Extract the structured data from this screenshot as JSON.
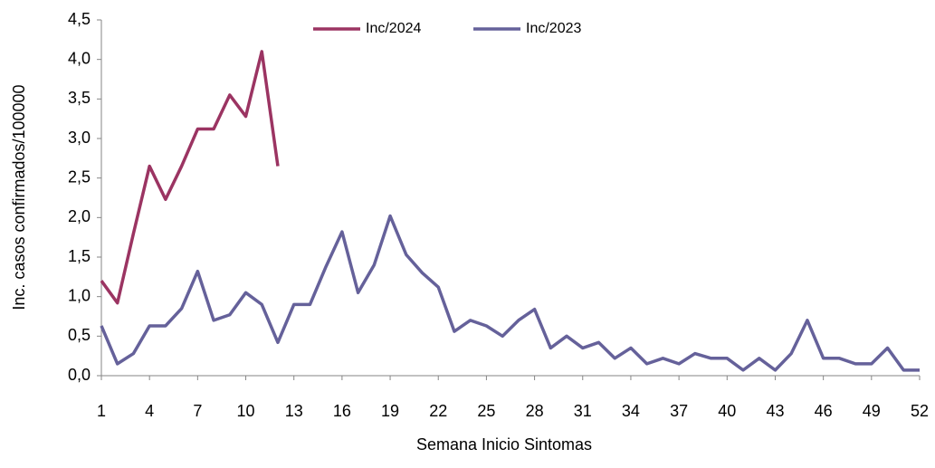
{
  "chart_data": {
    "type": "line",
    "x_label": "Semana Inicio Sintomas",
    "y_label": "Inc. casos confirmados/100000",
    "x": [
      1,
      2,
      3,
      4,
      5,
      6,
      7,
      8,
      9,
      10,
      11,
      12,
      13,
      14,
      15,
      16,
      17,
      18,
      19,
      20,
      21,
      22,
      23,
      24,
      25,
      26,
      27,
      28,
      29,
      30,
      31,
      32,
      33,
      34,
      35,
      36,
      37,
      38,
      39,
      40,
      41,
      42,
      43,
      44,
      45,
      46,
      47,
      48,
      49,
      50,
      51,
      52
    ],
    "series": [
      {
        "name": "Inc/2024",
        "color": "#9b3462",
        "values": [
          1.2,
          0.92,
          1.8,
          2.65,
          2.23,
          2.65,
          3.12,
          3.12,
          3.55,
          3.28,
          4.1,
          2.65,
          null,
          null,
          null,
          null,
          null,
          null,
          null,
          null,
          null,
          null,
          null,
          null,
          null,
          null,
          null,
          null,
          null,
          null,
          null,
          null,
          null,
          null,
          null,
          null,
          null,
          null,
          null,
          null,
          null,
          null,
          null,
          null,
          null,
          null,
          null,
          null,
          null,
          null,
          null,
          null
        ]
      },
      {
        "name": "Inc/2023",
        "color": "#65619a",
        "values": [
          0.63,
          0.15,
          0.28,
          0.63,
          0.63,
          0.85,
          1.32,
          0.7,
          0.77,
          1.05,
          0.9,
          0.42,
          0.9,
          0.9,
          1.38,
          1.82,
          1.05,
          1.4,
          2.02,
          1.53,
          1.3,
          1.12,
          0.56,
          0.7,
          0.63,
          0.5,
          0.7,
          0.84,
          0.35,
          0.5,
          0.35,
          0.42,
          0.22,
          0.35,
          0.15,
          0.22,
          0.15,
          0.28,
          0.22,
          0.22,
          0.07,
          0.22,
          0.07,
          0.28,
          0.7,
          0.22,
          0.22,
          0.15,
          0.15,
          0.35,
          0.07,
          0.07
        ]
      }
    ],
    "xlim": [
      1,
      52
    ],
    "xticks": [
      1,
      4,
      7,
      10,
      13,
      16,
      19,
      22,
      25,
      28,
      31,
      34,
      37,
      40,
      43,
      46,
      49,
      52
    ],
    "ylim": [
      0,
      4.5
    ],
    "yticks": [
      {
        "value": 0,
        "label": "0,0"
      },
      {
        "value": 0.5,
        "label": "0,5"
      },
      {
        "value": 1,
        "label": "1,0"
      },
      {
        "value": 1.5,
        "label": "1,5"
      },
      {
        "value": 2,
        "label": "2,0"
      },
      {
        "value": 2.5,
        "label": "2,5"
      },
      {
        "value": 3,
        "label": "3,0"
      },
      {
        "value": 3.5,
        "label": "3,5"
      },
      {
        "value": 4,
        "label": "4,0"
      },
      {
        "value": 4.5,
        "label": "4,5"
      }
    ],
    "grid": false,
    "legend": "top"
  }
}
